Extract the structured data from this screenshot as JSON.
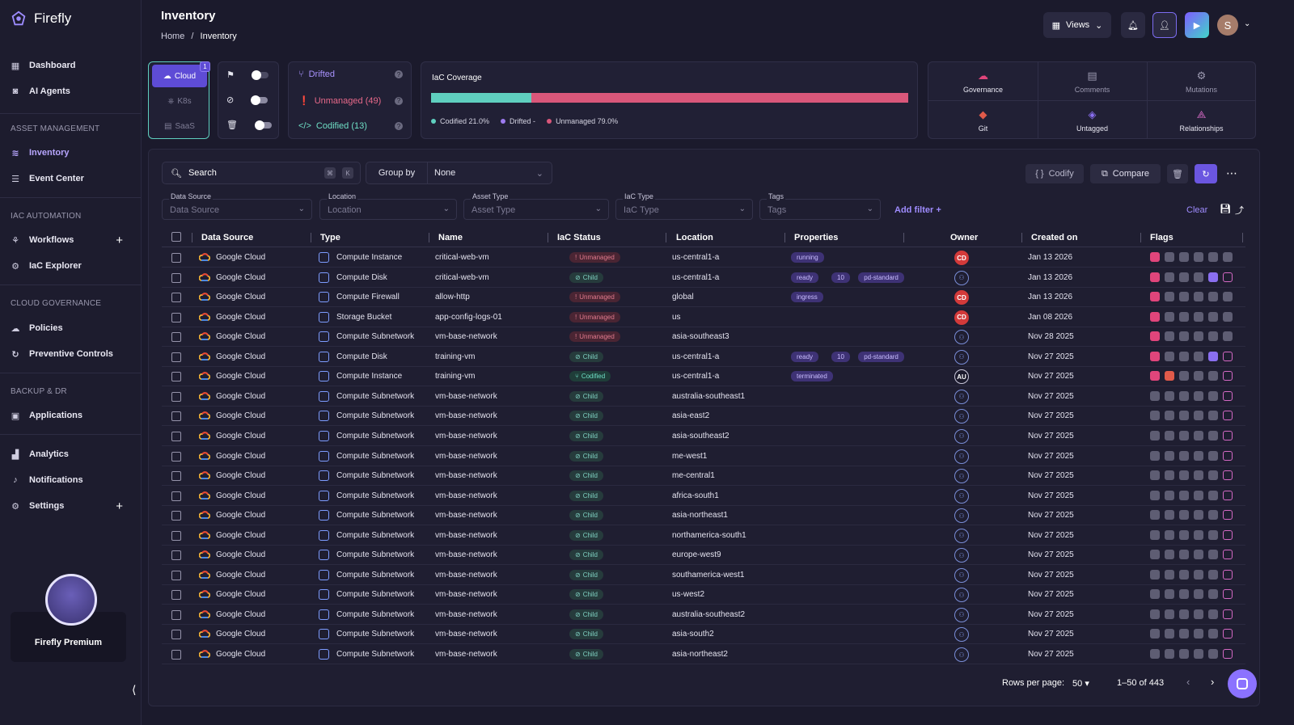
{
  "app": {
    "name": "Firefly"
  },
  "sidebar": {
    "items": [
      {
        "label": "Dashboard"
      },
      {
        "label": "AI Agents"
      },
      {
        "label": "Inventory"
      },
      {
        "label": "Event Center"
      },
      {
        "label": "Workflows"
      },
      {
        "label": "IaC Explorer"
      },
      {
        "label": "Policies"
      },
      {
        "label": "Preventive Controls"
      },
      {
        "label": "Applications"
      },
      {
        "label": "Analytics"
      },
      {
        "label": "Notifications"
      },
      {
        "label": "Settings"
      }
    ],
    "sections": [
      "ASSET MANAGEMENT",
      "IAC AUTOMATION",
      "CLOUD GOVERNANCE",
      "BACKUP & DR"
    ],
    "premium_label": "Firefly Premium"
  },
  "header": {
    "title": "Inventory",
    "breadcrumb_home": "Home",
    "breadcrumb_sep": "/",
    "breadcrumb_current": "Inventory",
    "views_label": "Views",
    "avatar_initial": "S"
  },
  "data_source_switch": {
    "cloud": "Cloud",
    "k8s": "K8s",
    "saas": "SaaS",
    "cloud_badge": "1"
  },
  "iac_status_card": {
    "drifted": "Drifted",
    "unmanaged": "Unmanaged (49)",
    "codified": "Codified (13)"
  },
  "coverage": {
    "title": "IaC Coverage",
    "codified_fraction": 0.21,
    "legend_codified": "Codified 21.0%",
    "legend_drifted": "Drifted -",
    "legend_unmanaged": "Unmanaged 79.0%",
    "colors": {
      "codified": "#5fcfbf",
      "drifted": "#9d7bf0",
      "unmanaged": "#d9577a"
    }
  },
  "quick_actions": [
    "Governance",
    "Comments",
    "Mutations",
    "Git",
    "Untagged",
    "Relationships"
  ],
  "toolbar": {
    "search_placeholder": "Search",
    "group_by_label": "Group by",
    "group_by_value": "None",
    "codify": "Codify",
    "compare": "Compare"
  },
  "filters": [
    {
      "label": "Data Source",
      "value": "Data Source"
    },
    {
      "label": "Location",
      "value": "Location"
    },
    {
      "label": "Asset Type",
      "value": "Asset Type"
    },
    {
      "label": "IaC Type",
      "value": "IaC Type"
    },
    {
      "label": "Tags",
      "value": "Tags"
    }
  ],
  "filter_actions": {
    "add": "Add filter +",
    "clear": "Clear"
  },
  "table": {
    "columns": [
      "Data Source",
      "Type",
      "Name",
      "IaC Status",
      "Location",
      "Properties",
      "Owner",
      "Created on",
      "Flags"
    ],
    "rows": [
      {
        "source": "Google Cloud",
        "type": "Compute Instance",
        "name": "critical-web-vm",
        "status": "Unmanaged",
        "location": "us-central1-a",
        "props": [
          "running"
        ],
        "owner": "CD",
        "created": "Jan 13 2026"
      },
      {
        "source": "Google Cloud",
        "type": "Compute Disk",
        "name": "critical-web-vm",
        "status": "Child",
        "location": "us-central1-a",
        "props": [
          "ready",
          "10",
          "pd-standard"
        ],
        "owner": "",
        "created": "Jan 13 2026"
      },
      {
        "source": "Google Cloud",
        "type": "Compute Firewall",
        "name": "allow-http",
        "status": "Unmanaged",
        "location": "global",
        "props": [
          "ingress"
        ],
        "owner": "CD",
        "created": "Jan 13 2026"
      },
      {
        "source": "Google Cloud",
        "type": "Storage Bucket",
        "name": "app-config-logs-01",
        "status": "Unmanaged",
        "location": "us",
        "props": [],
        "owner": "CD",
        "created": "Jan 08 2026"
      },
      {
        "source": "Google Cloud",
        "type": "Compute Subnetwork",
        "name": "vm-base-network",
        "status": "Unmanaged",
        "location": "asia-southeast3",
        "props": [],
        "owner": "",
        "created": "Nov 28 2025"
      },
      {
        "source": "Google Cloud",
        "type": "Compute Disk",
        "name": "training-vm",
        "status": "Child",
        "location": "us-central1-a",
        "props": [
          "ready",
          "10",
          "pd-standard"
        ],
        "owner": "",
        "created": "Nov 27 2025"
      },
      {
        "source": "Google Cloud",
        "type": "Compute Instance",
        "name": "training-vm",
        "status": "Codified",
        "location": "us-central1-a",
        "props": [
          "terminated"
        ],
        "owner": "AU",
        "created": "Nov 27 2025"
      },
      {
        "source": "Google Cloud",
        "type": "Compute Subnetwork",
        "name": "vm-base-network",
        "status": "Child",
        "location": "australia-southeast1",
        "props": [],
        "owner": "",
        "created": "Nov 27 2025"
      },
      {
        "source": "Google Cloud",
        "type": "Compute Subnetwork",
        "name": "vm-base-network",
        "status": "Child",
        "location": "asia-east2",
        "props": [],
        "owner": "",
        "created": "Nov 27 2025"
      },
      {
        "source": "Google Cloud",
        "type": "Compute Subnetwork",
        "name": "vm-base-network",
        "status": "Child",
        "location": "asia-southeast2",
        "props": [],
        "owner": "",
        "created": "Nov 27 2025"
      },
      {
        "source": "Google Cloud",
        "type": "Compute Subnetwork",
        "name": "vm-base-network",
        "status": "Child",
        "location": "me-west1",
        "props": [],
        "owner": "",
        "created": "Nov 27 2025"
      },
      {
        "source": "Google Cloud",
        "type": "Compute Subnetwork",
        "name": "vm-base-network",
        "status": "Child",
        "location": "me-central1",
        "props": [],
        "owner": "",
        "created": "Nov 27 2025"
      },
      {
        "source": "Google Cloud",
        "type": "Compute Subnetwork",
        "name": "vm-base-network",
        "status": "Child",
        "location": "africa-south1",
        "props": [],
        "owner": "",
        "created": "Nov 27 2025"
      },
      {
        "source": "Google Cloud",
        "type": "Compute Subnetwork",
        "name": "vm-base-network",
        "status": "Child",
        "location": "asia-northeast1",
        "props": [],
        "owner": "",
        "created": "Nov 27 2025"
      },
      {
        "source": "Google Cloud",
        "type": "Compute Subnetwork",
        "name": "vm-base-network",
        "status": "Child",
        "location": "northamerica-south1",
        "props": [],
        "owner": "",
        "created": "Nov 27 2025"
      },
      {
        "source": "Google Cloud",
        "type": "Compute Subnetwork",
        "name": "vm-base-network",
        "status": "Child",
        "location": "europe-west9",
        "props": [],
        "owner": "",
        "created": "Nov 27 2025"
      },
      {
        "source": "Google Cloud",
        "type": "Compute Subnetwork",
        "name": "vm-base-network",
        "status": "Child",
        "location": "southamerica-west1",
        "props": [],
        "owner": "",
        "created": "Nov 27 2025"
      },
      {
        "source": "Google Cloud",
        "type": "Compute Subnetwork",
        "name": "vm-base-network",
        "status": "Child",
        "location": "us-west2",
        "props": [],
        "owner": "",
        "created": "Nov 27 2025"
      },
      {
        "source": "Google Cloud",
        "type": "Compute Subnetwork",
        "name": "vm-base-network",
        "status": "Child",
        "location": "australia-southeast2",
        "props": [],
        "owner": "",
        "created": "Nov 27 2025"
      },
      {
        "source": "Google Cloud",
        "type": "Compute Subnetwork",
        "name": "vm-base-network",
        "status": "Child",
        "location": "asia-south2",
        "props": [],
        "owner": "",
        "created": "Nov 27 2025"
      },
      {
        "source": "Google Cloud",
        "type": "Compute Subnetwork",
        "name": "vm-base-network",
        "status": "Child",
        "location": "asia-northeast2",
        "props": [],
        "owner": "",
        "created": "Nov 27 2025"
      }
    ]
  },
  "pagination": {
    "rows_label": "Rows per page:",
    "rows_value": "50",
    "range": "1–50 of 443"
  }
}
